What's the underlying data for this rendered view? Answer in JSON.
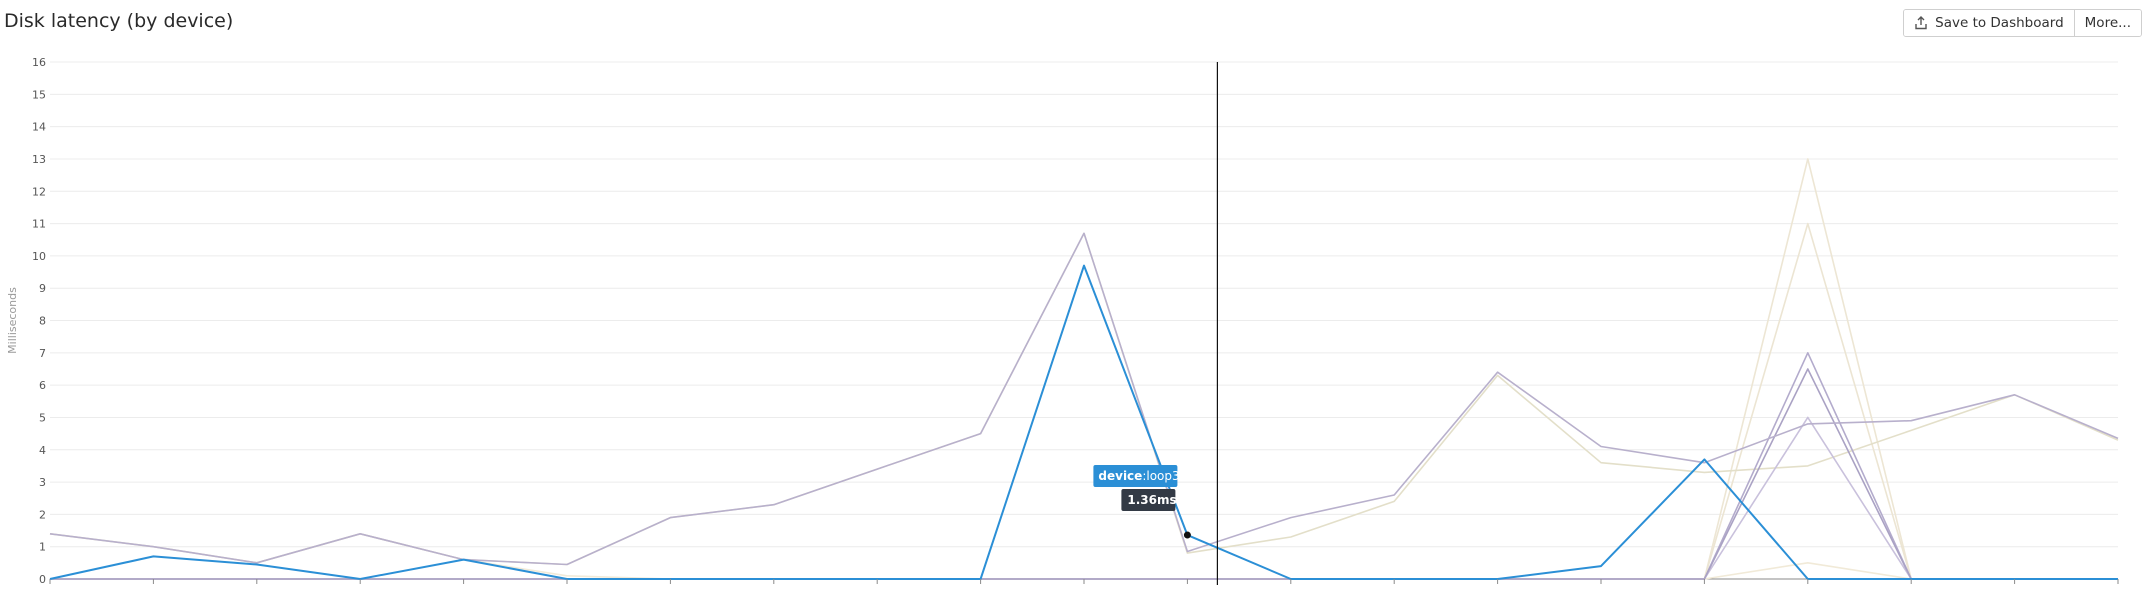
{
  "header": {
    "title": "Disk latency (by device)",
    "save_label": "Save to Dashboard",
    "more_label": "More..."
  },
  "chart_data": {
    "type": "line",
    "title": "Disk latency (by device)",
    "ylabel": "Milliseconds",
    "ylim": [
      0,
      16
    ],
    "yticks": [
      0,
      1,
      2,
      3,
      4,
      5,
      6,
      7,
      8,
      9,
      10,
      11,
      12,
      13,
      14,
      15,
      16
    ],
    "grid": true,
    "x": [
      0,
      1,
      2,
      3,
      4,
      5,
      6,
      7,
      8,
      9,
      10,
      11,
      12,
      13,
      14,
      15,
      16,
      17,
      18,
      19,
      20
    ],
    "series": [
      {
        "color": "#f1ead8",
        "values": [
          1.4,
          1.0,
          0.5,
          1.4,
          0.6,
          0.1,
          0,
          0,
          0,
          0,
          0,
          0,
          0,
          0,
          0,
          0,
          0,
          0.5,
          0,
          0,
          0
        ]
      },
      {
        "color": "#ede6d4",
        "values": [
          0,
          0,
          0,
          0,
          0,
          0,
          0,
          0,
          0,
          0,
          0,
          0,
          0,
          0,
          0,
          0,
          0,
          13.0,
          0,
          0,
          0
        ]
      },
      {
        "color": "#ece5d3",
        "values": [
          0,
          0,
          0,
          0,
          0,
          0,
          0,
          0,
          0,
          0,
          0,
          0,
          0,
          0,
          0,
          0,
          0,
          11.0,
          0,
          0,
          0
        ]
      },
      {
        "color": "#e3dfc9",
        "values": [
          1.4,
          1.0,
          0.5,
          1.4,
          0.6,
          0.45,
          1.9,
          2.3,
          3.4,
          4.5,
          10.7,
          0.8,
          1.3,
          2.4,
          6.3,
          3.6,
          3.3,
          3.5,
          4.6,
          5.7,
          4.3
        ]
      },
      {
        "color": "#c9c1dc",
        "values": [
          0,
          0,
          0,
          0,
          0,
          0,
          0,
          0,
          0,
          0,
          0,
          0,
          0,
          0,
          0,
          0,
          0,
          5.0,
          0,
          0,
          0
        ]
      },
      {
        "color": "#b3abcc",
        "values": [
          0,
          0,
          0,
          0,
          0,
          0,
          0,
          0,
          0,
          0,
          0,
          0,
          0,
          0,
          0,
          0,
          0,
          7.0,
          0,
          0,
          0
        ]
      },
      {
        "color": "#aaa2c4",
        "values": [
          0,
          0,
          0,
          0,
          0,
          0,
          0,
          0,
          0,
          0,
          0,
          0,
          0,
          0,
          0,
          0,
          0,
          6.5,
          0,
          0,
          0
        ]
      },
      {
        "color": "#b8b0cc",
        "values": [
          1.4,
          1.0,
          0.5,
          1.4,
          0.6,
          0.45,
          1.9,
          2.3,
          3.4,
          4.5,
          10.7,
          0.85,
          1.9,
          2.6,
          6.4,
          4.1,
          3.6,
          4.8,
          4.9,
          5.7,
          4.35
        ]
      },
      {
        "name": "device:loop3",
        "color": "#2b8fd6",
        "values": [
          0,
          0.7,
          0.45,
          0,
          0.6,
          0,
          0,
          0,
          0,
          0,
          9.7,
          1.36,
          0,
          0,
          0,
          0.4,
          3.7,
          0,
          0,
          0,
          0
        ]
      }
    ],
    "tooltip": {
      "device_key": "device",
      "device_value": "loop3",
      "value": "1.36ms"
    }
  }
}
